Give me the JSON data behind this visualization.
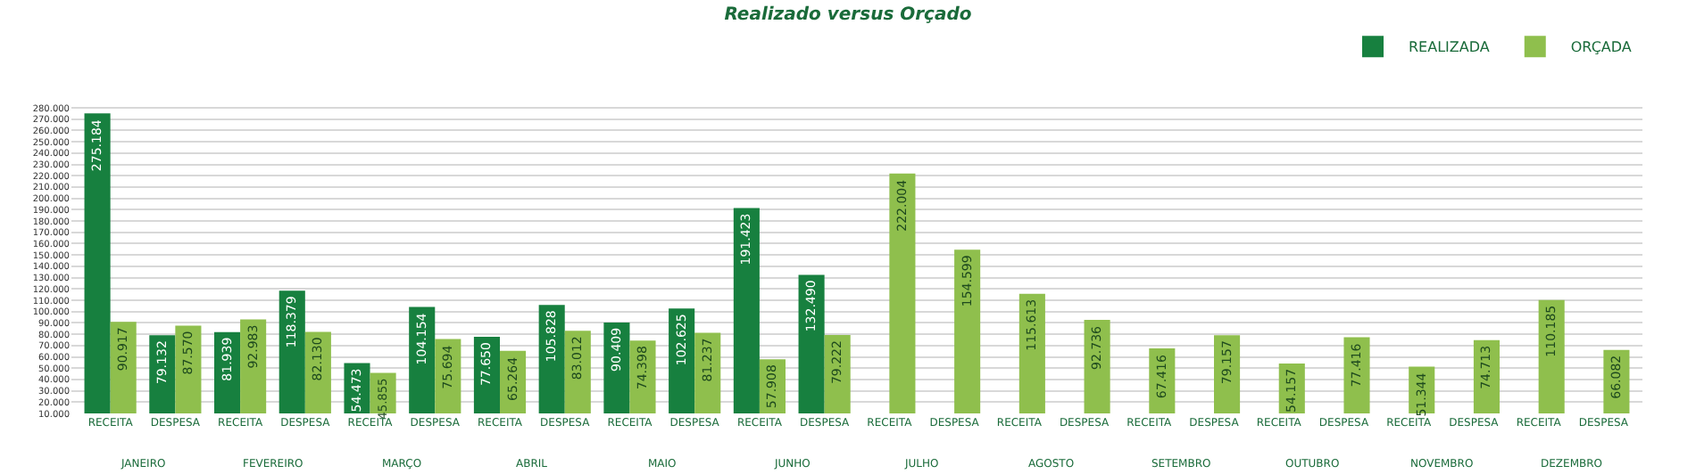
{
  "chart_data": {
    "type": "bar",
    "title": "Realizado versus Orçado",
    "categories": [
      "RECEITA",
      "DESPESA",
      "RECEITA",
      "DESPESA",
      "RECEITA",
      "DESPESA",
      "RECEITA",
      "DESPESA",
      "RECEITA",
      "DESPESA",
      "RECEITA",
      "DESPESA",
      "RECEITA",
      "DESPESA",
      "RECEITA",
      "DESPESA",
      "RECEITA",
      "DESPESA",
      "RECEITA",
      "DESPESA",
      "RECEITA",
      "DESPESA",
      "RECEITA",
      "DESPESA"
    ],
    "annotations": [
      "JANEIRO",
      "FEVEREIRO",
      "MARÇO",
      "ABRIL",
      "MAIO",
      "JUNHO",
      "JULHO",
      "AGOSTO",
      "SETEMBRO",
      "OUTUBRO",
      "NOVEMBRO",
      "DEZEMBRO"
    ],
    "series": [
      {
        "name": "REALIZADA",
        "color": "#17803f",
        "values": [
          275184,
          79132,
          81939,
          118379,
          54473,
          104154,
          77650,
          105828,
          90409,
          102625,
          191423,
          132490,
          null,
          null,
          null,
          null,
          null,
          null,
          null,
          null,
          null,
          null,
          null,
          null
        ],
        "value_labels": [
          "275.184",
          "79.132",
          "81.939",
          "118.379",
          "54.473",
          "104.154",
          "77.650",
          "105.828",
          "90.409",
          "102.625",
          "191.423",
          "132.490",
          null,
          null,
          null,
          null,
          null,
          null,
          null,
          null,
          null,
          null,
          null,
          null
        ]
      },
      {
        "name": "ORÇADA",
        "color": "#8fbf4d",
        "values": [
          90917,
          87570,
          92983,
          82130,
          45855,
          75694,
          65264,
          83012,
          74398,
          81237,
          57908,
          79222,
          222004,
          154599,
          115613,
          92736,
          67416,
          79157,
          54157,
          77416,
          51344,
          74713,
          110185,
          66082
        ],
        "value_labels": [
          "90.917",
          "87.570",
          "92.983",
          "82.130",
          "45.855",
          "75.694",
          "65.264",
          "83.012",
          "74.398",
          "81.237",
          "57.908",
          "79.222",
          "222.004",
          "154.599",
          "115.613",
          "92.736",
          "67.416",
          "79.157",
          "54.157",
          "77.416",
          "51.344",
          "74.713",
          "110.185",
          "66.082"
        ]
      }
    ],
    "ylim": [
      10000,
      284000
    ],
    "yticks": [
      {
        "value": 10000,
        "label": "10.000"
      },
      {
        "value": 20000,
        "label": "20.000"
      },
      {
        "value": 30000,
        "label": "30.000"
      },
      {
        "value": 40000,
        "label": "40.000"
      },
      {
        "value": 50000,
        "label": "50.000"
      },
      {
        "value": 60000,
        "label": "60.000"
      },
      {
        "value": 70000,
        "label": "70.000"
      },
      {
        "value": 80000,
        "label": "80.000"
      },
      {
        "value": 90000,
        "label": "90.000"
      },
      {
        "value": 100000,
        "label": "100.000"
      },
      {
        "value": 110000,
        "label": "110.000"
      },
      {
        "value": 120000,
        "label": "120.000"
      },
      {
        "value": 130000,
        "label": "130.000"
      },
      {
        "value": 140000,
        "label": "140.000"
      },
      {
        "value": 150000,
        "label": "150.000"
      },
      {
        "value": 160000,
        "label": "160.000"
      },
      {
        "value": 170000,
        "label": "170.000"
      },
      {
        "value": 180000,
        "label": "180.000"
      },
      {
        "value": 190000,
        "label": "190.000"
      },
      {
        "value": 200000,
        "label": "200.000"
      },
      {
        "value": 210000,
        "label": "210.000"
      },
      {
        "value": 220000,
        "label": "220.000"
      },
      {
        "value": 230000,
        "label": "230.000"
      },
      {
        "value": 240000,
        "label": "240.000"
      },
      {
        "value": 250000,
        "label": "250.000"
      },
      {
        "value": 260000,
        "label": "260.000"
      },
      {
        "value": 270000,
        "label": "270.000"
      },
      {
        "value": 280000,
        "label": "280.000"
      }
    ],
    "grid": "y",
    "legend": "top right"
  }
}
